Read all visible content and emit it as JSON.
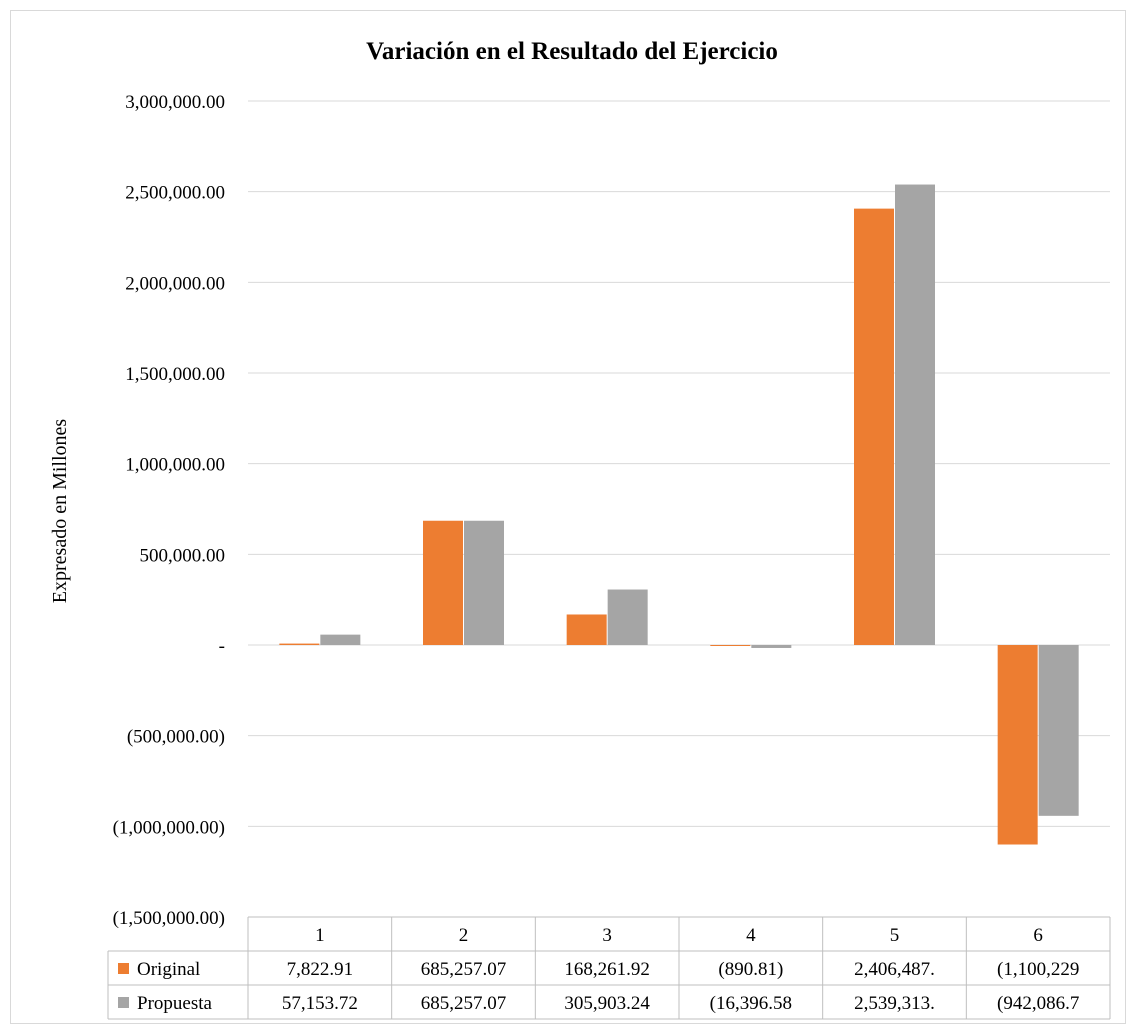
{
  "chart_data": {
    "type": "bar",
    "title": "Variación en el Resultado del Ejercicio",
    "xlabel": "",
    "ylabel": "Expresado en Millones",
    "ylim": [
      -1500000,
      3000000
    ],
    "ytick_step": 500000,
    "y_tick_labels": [
      "(1,500,000.00)",
      "(1,000,000.00)",
      "(500,000.00)",
      "-",
      "500,000.00",
      "1,000,000.00",
      "1,500,000.00",
      "2,000,000.00",
      "2,500,000.00",
      "3,000,000.00"
    ],
    "categories": [
      "1",
      "2",
      "3",
      "4",
      "5",
      "6"
    ],
    "grid": true,
    "legend": "data-table",
    "series": [
      {
        "name": "Original",
        "color": "#ed7d31",
        "values": [
          7822.91,
          685257.07,
          168261.92,
          -890.81,
          2406487,
          -1100229
        ],
        "table_labels": [
          "7,822.91",
          "685,257.07",
          "168,261.92",
          "(890.81)",
          "2,406,487.",
          "(1,100,229"
        ]
      },
      {
        "name": "Propuesta",
        "color": "#a5a5a5",
        "values": [
          57153.72,
          685257.07,
          305903.24,
          -16396.58,
          2539313,
          -942086.7
        ],
        "table_labels": [
          "57,153.72",
          "685,257.07",
          "305,903.24",
          "(16,396.58",
          "2,539,313.",
          "(942,086.7"
        ]
      }
    ]
  }
}
